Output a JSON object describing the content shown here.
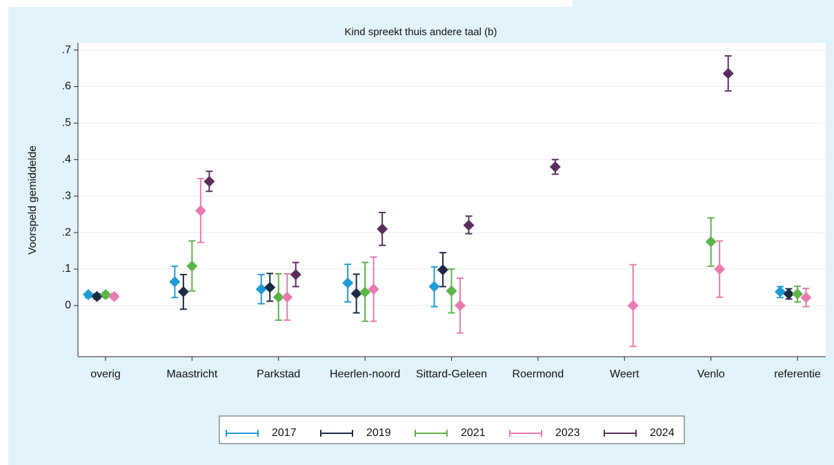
{
  "chart_data": {
    "type": "errorbar",
    "title": "Kind spreekt thuis andere taal (b)",
    "y_label": "Voorspeld gemiddelde",
    "categories": [
      "overig",
      "Maastricht",
      "Parkstad",
      "Heerlen-noord",
      "Sittard-Geleen",
      "Roermond",
      "Weert",
      "Venlo",
      "referentie"
    ],
    "ylim": [
      -0.14,
      0.72
    ],
    "yticks": [
      0,
      {
        "value": 0.1,
        "label": ".1"
      },
      {
        "value": 0.2,
        "label": ".2"
      },
      {
        "value": 0.3,
        "label": ".3"
      },
      {
        "value": 0.4,
        "label": ".4"
      },
      {
        "value": 0.5,
        "label": ".5"
      },
      {
        "value": 0.6,
        "label": ".6"
      },
      {
        "value": 0.7,
        "label": ".7"
      }
    ],
    "grid": true,
    "legend": "bottom",
    "series": [
      {
        "name": "2017",
        "color": "#1f9bd7",
        "values": [
          0.03,
          0.065,
          0.045,
          0.062,
          0.052,
          null,
          null,
          null,
          0.038
        ],
        "ci_low": [
          0.022,
          0.022,
          0.005,
          0.01,
          -0.003,
          null,
          null,
          null,
          0.022
        ],
        "ci_high": [
          0.036,
          0.108,
          0.085,
          0.113,
          0.106,
          null,
          null,
          null,
          0.052
        ]
      },
      {
        "name": "2019",
        "color": "#1b2a45",
        "values": [
          0.025,
          0.038,
          0.05,
          0.033,
          0.098,
          null,
          null,
          null,
          0.032
        ],
        "ci_low": [
          0.018,
          -0.01,
          0.012,
          -0.02,
          0.052,
          null,
          null,
          null,
          0.018
        ],
        "ci_high": [
          0.032,
          0.085,
          0.088,
          0.086,
          0.145,
          null,
          null,
          null,
          0.046
        ]
      },
      {
        "name": "2021",
        "color": "#5bb447",
        "values": [
          0.03,
          0.108,
          0.023,
          0.037,
          0.04,
          null,
          null,
          0.175,
          0.032
        ],
        "ci_low": [
          0.022,
          0.04,
          -0.04,
          -0.043,
          -0.02,
          null,
          null,
          0.108,
          0.01
        ],
        "ci_high": [
          0.036,
          0.177,
          0.087,
          0.118,
          0.1,
          null,
          null,
          0.24,
          0.053
        ]
      },
      {
        "name": "2023",
        "color": "#e97ab0",
        "values": [
          0.025,
          0.26,
          0.023,
          0.045,
          0,
          null,
          0,
          0.1,
          0.022
        ],
        "ci_low": [
          0.018,
          0.173,
          -0.04,
          -0.043,
          -0.075,
          null,
          -0.112,
          0.023,
          -0.003
        ],
        "ci_high": [
          0.032,
          0.348,
          0.087,
          0.133,
          0.075,
          null,
          0.112,
          0.177,
          0.047
        ]
      },
      {
        "name": "2024",
        "color": "#5a2d5e",
        "values": [
          null,
          0.34,
          0.085,
          0.21,
          0.22,
          0.38,
          null,
          0.636,
          null
        ],
        "ci_low": [
          null,
          0.313,
          0.052,
          0.165,
          0.197,
          0.36,
          null,
          0.588,
          null
        ],
        "ci_high": [
          null,
          0.368,
          0.118,
          0.255,
          0.245,
          0.4,
          null,
          0.684,
          null
        ]
      }
    ]
  }
}
